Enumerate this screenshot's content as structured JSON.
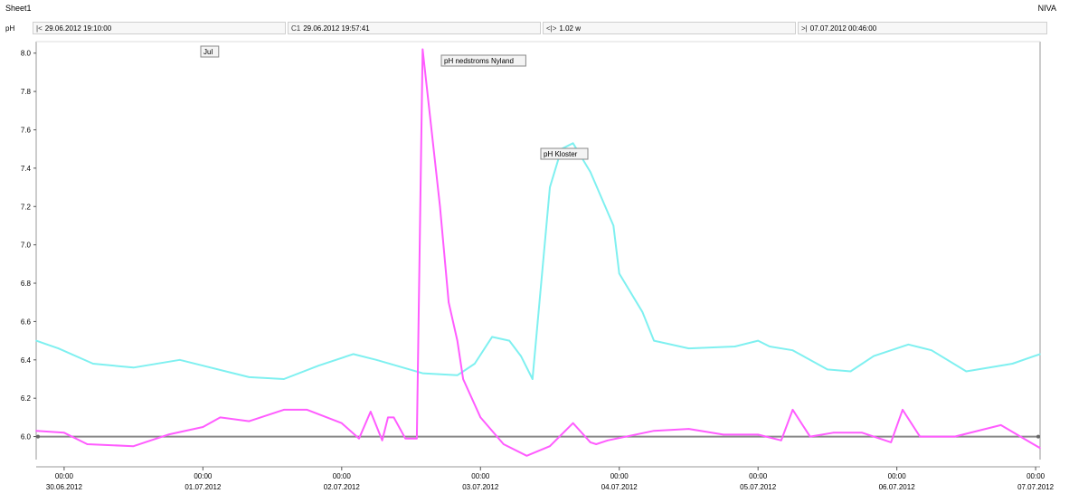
{
  "sheet_title": "Sheet1",
  "brand": "NIVA",
  "toolbar": {
    "y_unit": "pH",
    "start_glyph": "|<",
    "start_value": "29.06.2012 19:10:00",
    "cursor_glyph": "C1",
    "cursor_value": "29.06.2012 19:57:41",
    "span_glyph": "<|>",
    "span_value": "1.02 w",
    "end_glyph": ">|",
    "end_value": "07.07.2012 00:46:00"
  },
  "colors": {
    "kloster": "#7ff0f0",
    "nedstroms": "#ff5cff",
    "reference": "#888888",
    "axis": "#999999"
  },
  "chart_data": {
    "type": "line",
    "title": "",
    "xlabel": "",
    "ylabel": "pH",
    "ylim": [
      5.88,
      8.06
    ],
    "xlim": [
      "29.06.2012 19:10",
      "07.07.2012 00:46"
    ],
    "y_ticks": [
      "6.0",
      "6.2",
      "6.4",
      "6.6",
      "6.8",
      "7.0",
      "7.2",
      "7.4",
      "7.6",
      "7.8",
      "8.0"
    ],
    "x_ticks": [
      {
        "x": "30.06.2012 00:00",
        "time": "00:00",
        "date": "30.06.2012"
      },
      {
        "x": "01.07.2012 00:00",
        "time": "00:00",
        "date": "01.07.2012"
      },
      {
        "x": "02.07.2012 00:00",
        "time": "00:00",
        "date": "02.07.2012"
      },
      {
        "x": "03.07.2012 00:00",
        "time": "00:00",
        "date": "03.07.2012"
      },
      {
        "x": "04.07.2012 00:00",
        "time": "00:00",
        "date": "04.07.2012"
      },
      {
        "x": "05.07.2012 00:00",
        "time": "00:00",
        "date": "05.07.2012"
      },
      {
        "x": "06.07.2012 00:00",
        "time": "00:00",
        "date": "06.07.2012"
      },
      {
        "x": "07.07.2012 00:00",
        "time": "00:00",
        "date": "07.07.2012"
      }
    ],
    "reference_line": 6.0,
    "series": [
      {
        "name": "pH Kloster",
        "color": "#7ff0f0",
        "x": [
          "29.06.2012 19:10",
          "29.06.2012 23:00",
          "30.06.2012 05:00",
          "30.06.2012 12:00",
          "30.06.2012 20:00",
          "01.07.2012 00:00",
          "01.07.2012 08:00",
          "01.07.2012 14:00",
          "01.07.2012 20:00",
          "02.07.2012 02:00",
          "02.07.2012 06:00",
          "02.07.2012 14:00",
          "02.07.2012 20:00",
          "02.07.2012 23:00",
          "03.07.2012 02:00",
          "03.07.2012 05:00",
          "03.07.2012 07:00",
          "03.07.2012 09:00",
          "03.07.2012 12:00",
          "03.07.2012 14:00",
          "03.07.2012 16:00",
          "03.07.2012 19:00",
          "03.07.2012 23:00",
          "04.07.2012 00:00",
          "04.07.2012 04:00",
          "04.07.2012 06:00",
          "04.07.2012 12:00",
          "04.07.2012 20:00",
          "05.07.2012 00:00",
          "05.07.2012 02:00",
          "05.07.2012 06:00",
          "05.07.2012 12:00",
          "05.07.2012 16:00",
          "05.07.2012 20:00",
          "06.07.2012 02:00",
          "06.07.2012 06:00",
          "06.07.2012 12:00",
          "06.07.2012 20:00",
          "07.07.2012 00:46"
        ],
        "values": [
          6.5,
          6.46,
          6.38,
          6.36,
          6.4,
          6.37,
          6.31,
          6.3,
          6.37,
          6.43,
          6.4,
          6.33,
          6.32,
          6.38,
          6.52,
          6.5,
          6.42,
          6.3,
          7.3,
          7.5,
          7.53,
          7.38,
          7.1,
          6.85,
          6.65,
          6.5,
          6.46,
          6.47,
          6.5,
          6.47,
          6.45,
          6.35,
          6.34,
          6.42,
          6.48,
          6.45,
          6.34,
          6.38,
          6.43
        ],
        "label": "pH Kloster"
      },
      {
        "name": "pH nedstroms Nyland",
        "color": "#ff5cff",
        "x": [
          "29.06.2012 19:10",
          "30.06.2012 00:00",
          "30.06.2012 04:00",
          "30.06.2012 12:00",
          "30.06.2012 18:00",
          "01.07.2012 00:00",
          "01.07.2012 03:00",
          "01.07.2012 08:00",
          "01.07.2012 14:00",
          "01.07.2012 18:00",
          "02.07.2012 00:00",
          "02.07.2012 03:00",
          "02.07.2012 05:00",
          "02.07.2012 07:00",
          "02.07.2012 08:00",
          "02.07.2012 09:00",
          "02.07.2012 11:00",
          "02.07.2012 13:00",
          "02.07.2012 14:00",
          "02.07.2012 17:00",
          "02.07.2012 18:30",
          "02.07.2012 20:00",
          "02.07.2012 21:00",
          "03.07.2012 00:00",
          "03.07.2012 04:00",
          "03.07.2012 08:00",
          "03.07.2012 12:00",
          "03.07.2012 16:00",
          "03.07.2012 19:00",
          "03.07.2012 20:00",
          "03.07.2012 22:00",
          "04.07.2012 06:00",
          "04.07.2012 12:00",
          "04.07.2012 18:00",
          "05.07.2012 00:00",
          "05.07.2012 04:00",
          "05.07.2012 06:00",
          "05.07.2012 09:00",
          "05.07.2012 13:00",
          "05.07.2012 18:00",
          "05.07.2012 23:00",
          "06.07.2012 01:00",
          "06.07.2012 04:00",
          "06.07.2012 10:00",
          "06.07.2012 18:00",
          "07.07.2012 00:46"
        ],
        "values": [
          6.03,
          6.02,
          5.96,
          5.95,
          6.01,
          6.05,
          6.1,
          6.08,
          6.14,
          6.14,
          6.07,
          5.99,
          6.13,
          5.98,
          6.1,
          6.1,
          5.99,
          5.99,
          8.02,
          7.2,
          6.7,
          6.5,
          6.3,
          6.1,
          5.96,
          5.9,
          5.95,
          6.07,
          5.97,
          5.96,
          5.98,
          6.03,
          6.04,
          6.01,
          6.01,
          5.98,
          6.14,
          6.0,
          6.02,
          6.02,
          5.97,
          6.14,
          6.0,
          6.0,
          6.06,
          5.94
        ],
        "label": "pH nedstroms Nyland"
      }
    ],
    "annotations": [
      {
        "text": "Jul"
      },
      {
        "text": "pH nedstroms Nyland"
      },
      {
        "text": "pH Kloster"
      }
    ],
    "grid": false,
    "legend": "callout labels on lines"
  }
}
